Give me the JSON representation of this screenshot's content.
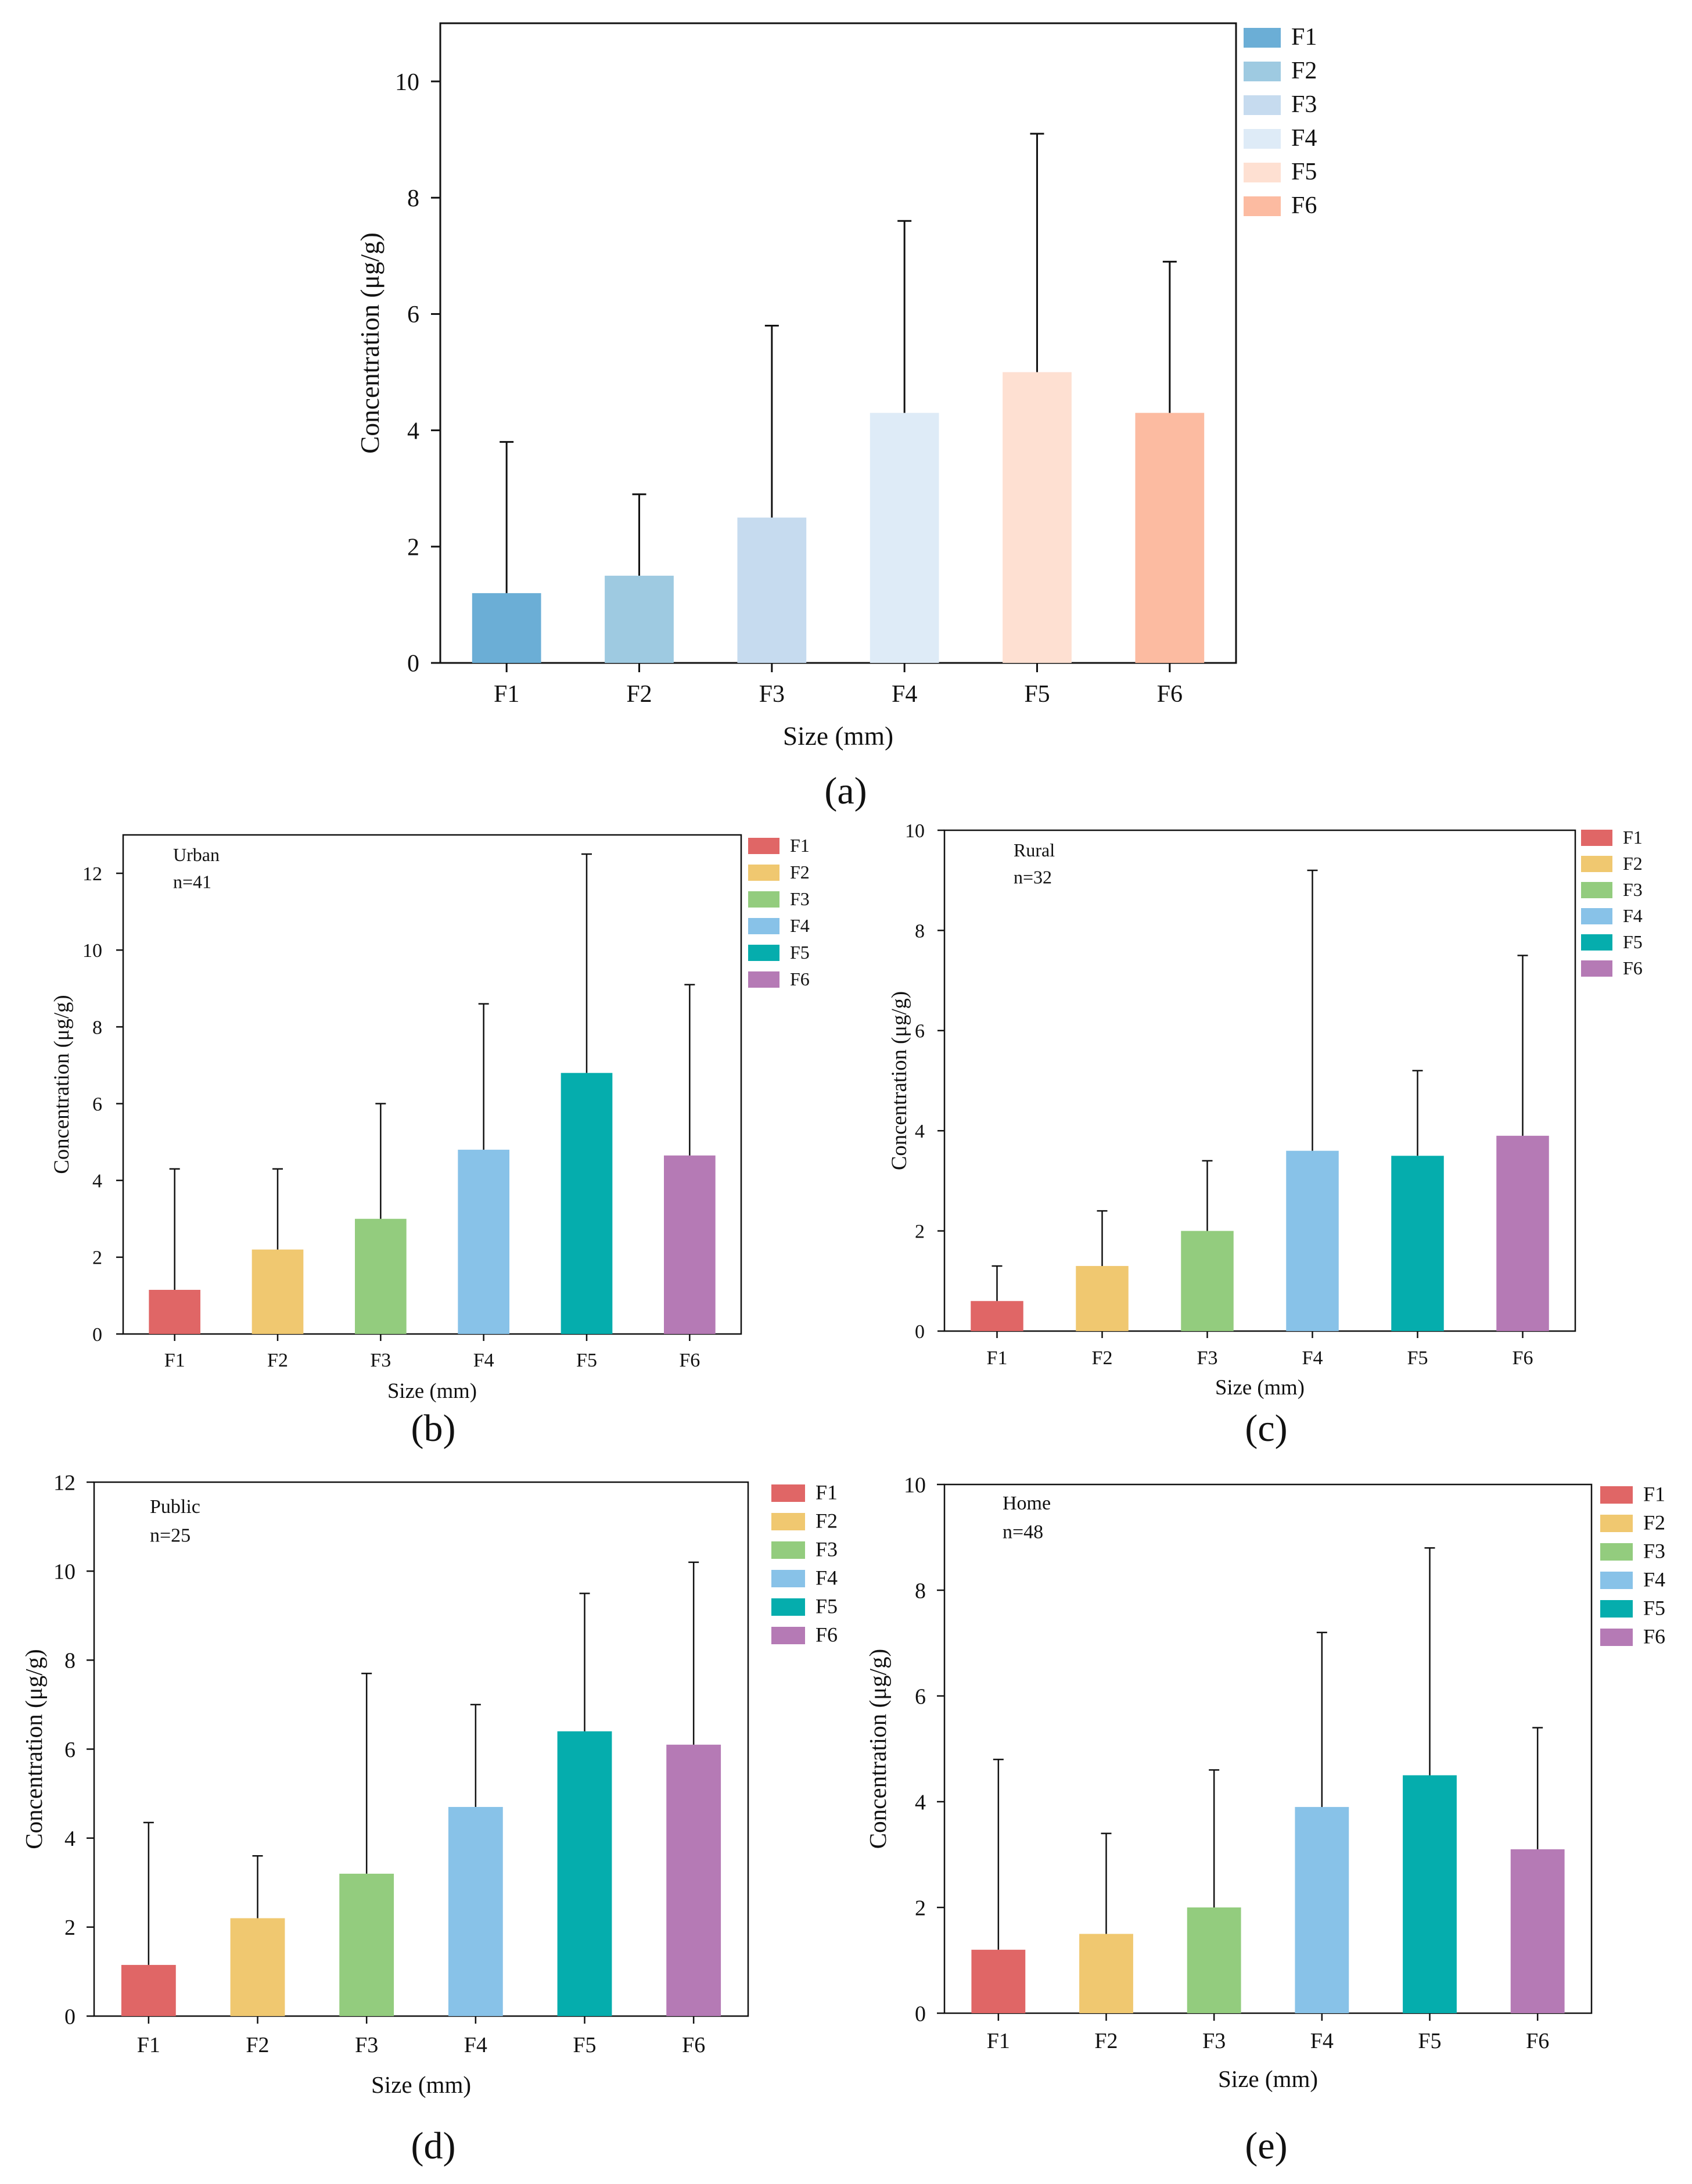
{
  "panel_labels": [
    "(a)",
    "(b)",
    "(c)",
    "(d)",
    "(e)"
  ],
  "chart_data": [
    {
      "id": "a",
      "type": "bar",
      "panel_label": "(a)",
      "title": "",
      "annotation": [
        "",
        ""
      ],
      "xlabel": "Size (mm)",
      "ylabel": "Concentration (μg/g)",
      "categories": [
        "F1",
        "F2",
        "F3",
        "F4",
        "F5",
        "F6"
      ],
      "values": [
        1.2,
        1.5,
        2.5,
        4.3,
        5.0,
        4.3
      ],
      "error_upper": [
        3.8,
        2.9,
        5.8,
        7.6,
        9.1,
        6.9
      ],
      "ylim": [
        0,
        11
      ],
      "yticks": [
        0,
        2,
        4,
        6,
        8,
        10
      ],
      "legend": [
        "F1",
        "F2",
        "F3",
        "F4",
        "F5",
        "F6"
      ],
      "legend_position": "outside-right",
      "colors": [
        "#6baed6",
        "#9ecae1",
        "#c6dbef",
        "#deebf7",
        "#fee0d2",
        "#fcbba1"
      ]
    },
    {
      "id": "b",
      "type": "bar",
      "panel_label": "(b)",
      "title": "",
      "annotation": [
        "Urban",
        "n=41"
      ],
      "xlabel": "Size (mm)",
      "ylabel": "Concentration (μg/g)",
      "categories": [
        "F1",
        "F2",
        "F3",
        "F4",
        "F5",
        "F6"
      ],
      "values": [
        1.15,
        2.2,
        3.0,
        4.8,
        6.8,
        4.65
      ],
      "error_upper": [
        4.3,
        4.3,
        6.0,
        8.6,
        12.5,
        9.1
      ],
      "ylim": [
        0,
        13
      ],
      "yticks": [
        0,
        2,
        4,
        6,
        8,
        10,
        12
      ],
      "legend": [
        "F1",
        "F2",
        "F3",
        "F4",
        "F5",
        "F6"
      ],
      "legend_position": "outside-right",
      "colors": [
        "#e06666",
        "#f0c870",
        "#93cc7e",
        "#88c2e8",
        "#05adad",
        "#b57ab5"
      ]
    },
    {
      "id": "c",
      "type": "bar",
      "panel_label": "(c)",
      "title": "",
      "annotation": [
        "Rural",
        "n=32"
      ],
      "xlabel": "Size (mm)",
      "ylabel": "Concentration (μg/g)",
      "categories": [
        "F1",
        "F2",
        "F3",
        "F4",
        "F5",
        "F6"
      ],
      "values": [
        0.6,
        1.3,
        2.0,
        3.6,
        3.5,
        3.9
      ],
      "error_upper": [
        1.3,
        2.4,
        3.4,
        9.2,
        5.2,
        7.5
      ],
      "ylim": [
        0,
        10
      ],
      "yticks": [
        0,
        2,
        4,
        6,
        8,
        10
      ],
      "legend": [
        "F1",
        "F2",
        "F3",
        "F4",
        "F5",
        "F6"
      ],
      "legend_position": "outside-right",
      "colors": [
        "#e06666",
        "#f0c870",
        "#93cc7e",
        "#88c2e8",
        "#05adad",
        "#b57ab5"
      ]
    },
    {
      "id": "d",
      "type": "bar",
      "panel_label": "(d)",
      "title": "",
      "annotation": [
        "Public",
        "n=25"
      ],
      "xlabel": "Size (mm)",
      "ylabel": "Concentration (μg/g)",
      "categories": [
        "F1",
        "F2",
        "F3",
        "F4",
        "F5",
        "F6"
      ],
      "values": [
        1.15,
        2.2,
        3.2,
        4.7,
        6.4,
        6.1
      ],
      "error_upper": [
        4.35,
        3.6,
        7.7,
        7.0,
        9.5,
        10.2
      ],
      "ylim": [
        0,
        12
      ],
      "yticks": [
        0,
        2,
        4,
        6,
        8,
        10,
        12
      ],
      "legend": [
        "F1",
        "F2",
        "F3",
        "F4",
        "F5",
        "F6"
      ],
      "legend_position": "outside-right",
      "colors": [
        "#e06666",
        "#f0c870",
        "#93cc7e",
        "#88c2e8",
        "#05adad",
        "#b57ab5"
      ]
    },
    {
      "id": "e",
      "type": "bar",
      "panel_label": "(e)",
      "title": "",
      "annotation": [
        "Home",
        "n=48"
      ],
      "xlabel": "Size (mm)",
      "ylabel": "Concentration (μg/g)",
      "categories": [
        "F1",
        "F2",
        "F3",
        "F4",
        "F5",
        "F6"
      ],
      "values": [
        1.2,
        1.5,
        2.0,
        3.9,
        4.5,
        3.1
      ],
      "error_upper": [
        4.8,
        3.4,
        4.6,
        7.2,
        8.8,
        5.4
      ],
      "ylim": [
        0,
        10
      ],
      "yticks": [
        0,
        2,
        4,
        6,
        8,
        10
      ],
      "legend": [
        "F1",
        "F2",
        "F3",
        "F4",
        "F5",
        "F6"
      ],
      "legend_position": "outside-right",
      "colors": [
        "#e06666",
        "#f0c870",
        "#93cc7e",
        "#88c2e8",
        "#05adad",
        "#b57ab5"
      ]
    }
  ]
}
